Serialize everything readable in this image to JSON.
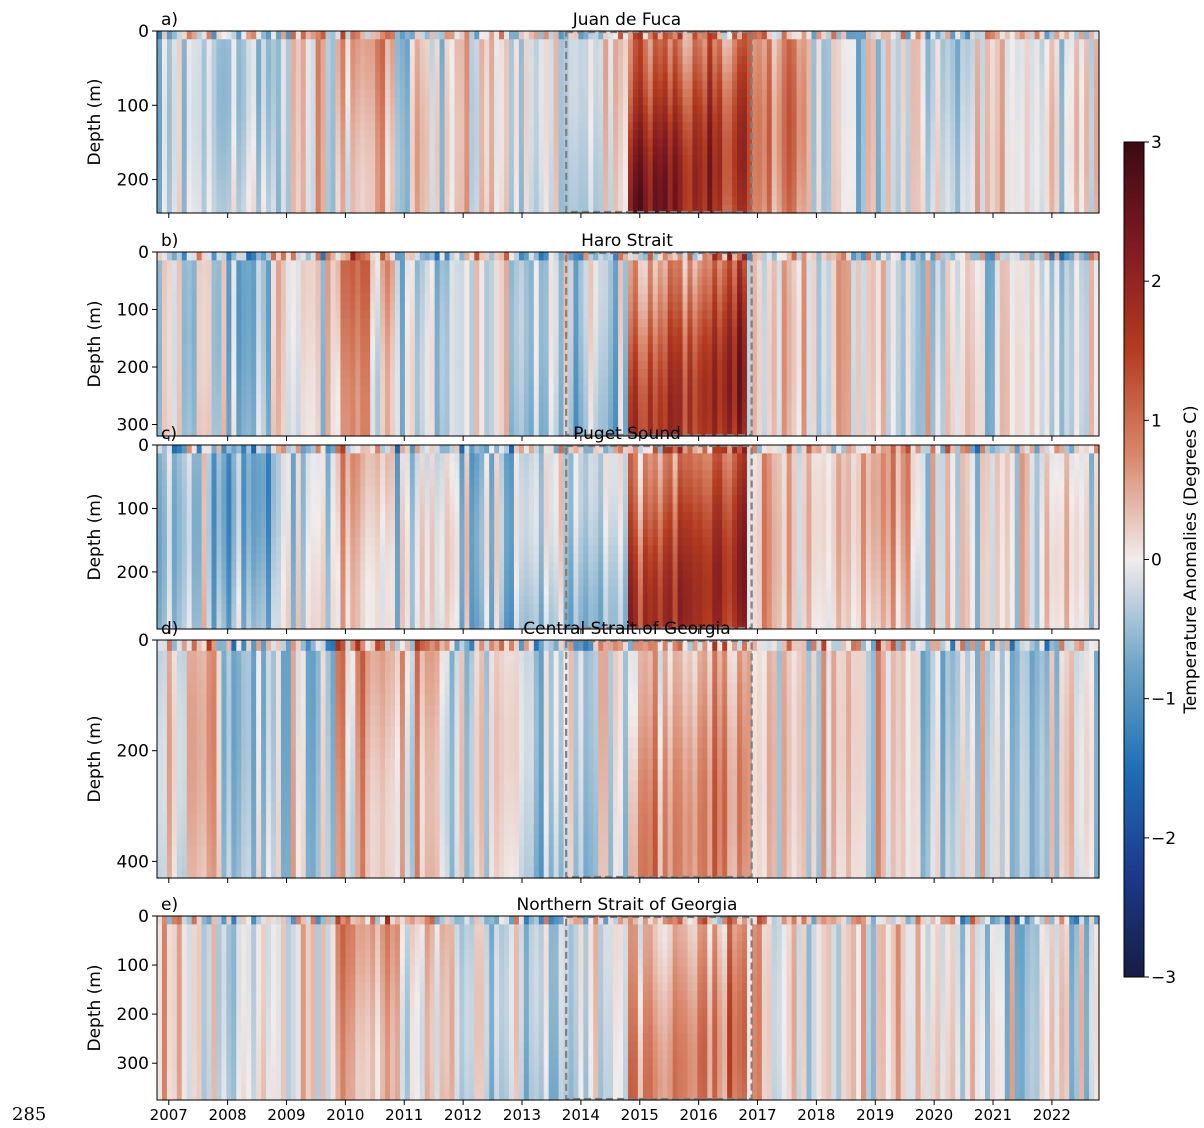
{
  "page_number": "285",
  "colorbar": {
    "label": "Temperature Anomalies (Degrees C)",
    "min": -3,
    "max": 3,
    "ticks": [
      "3",
      "2",
      "1",
      "0",
      "−1",
      "−2",
      "−3"
    ],
    "colormap": "diverging-balance",
    "colors": [
      "#151d44",
      "#1c3a8c",
      "#1f6fb5",
      "#6fa6c8",
      "#f1ecec",
      "#d9876b",
      "#b43c20",
      "#7f1a22",
      "#3c0912"
    ]
  },
  "x_ticks": [
    "2007",
    "2008",
    "2009",
    "2010",
    "2011",
    "2012",
    "2013",
    "2014",
    "2015",
    "2016",
    "2017",
    "2018",
    "2019",
    "2020",
    "2021",
    "2022"
  ],
  "highlight_window": {
    "start_year": 2013.75,
    "end_year": 2016.9,
    "color": "#808080",
    "style": "dashed"
  },
  "chart_data": [
    {
      "type": "heatmap",
      "panel_label": "a)",
      "title": "Juan de Fuca",
      "ylabel": "Depth (m)",
      "xlim": [
        2006.8,
        2022.8
      ],
      "ylim": [
        245,
        0
      ],
      "yticks": [
        "0",
        "100",
        "200"
      ],
      "ytick_values": [
        0,
        100,
        200
      ],
      "anomaly_by_year": [
        -0.2,
        -0.4,
        0.1,
        0.5,
        -0.3,
        0.2,
        -0.2,
        -0.3,
        2.0,
        1.7,
        0.6,
        -0.1,
        0.1,
        -0.3,
        -0.1,
        -0.3
      ]
    },
    {
      "type": "heatmap",
      "panel_label": "b)",
      "title": "Haro Strait",
      "ylabel": "Depth (m)",
      "xlim": [
        2006.8,
        2022.8
      ],
      "ylim": [
        320,
        0
      ],
      "yticks": [
        "0",
        "100",
        "200",
        "300"
      ],
      "ytick_values": [
        0,
        100,
        200,
        300
      ],
      "anomaly_by_year": [
        -0.2,
        -0.3,
        0.2,
        0.6,
        -0.3,
        0.0,
        -0.3,
        -0.4,
        1.6,
        1.7,
        0.2,
        0.1,
        0.1,
        -0.2,
        -0.1,
        -0.2
      ]
    },
    {
      "type": "heatmap",
      "panel_label": "c)",
      "title": "Puget Sound",
      "ylabel": "Depth (m)",
      "xlim": [
        2006.8,
        2022.8
      ],
      "ylim": [
        290,
        0
      ],
      "yticks": [
        "0",
        "100",
        "200"
      ],
      "ytick_values": [
        0,
        100,
        200
      ],
      "anomaly_by_year": [
        -0.4,
        -0.6,
        -0.3,
        0.5,
        -0.4,
        -0.6,
        -0.6,
        -0.6,
        1.6,
        1.5,
        0.2,
        0.3,
        0.5,
        -0.1,
        0.1,
        -0.4
      ]
    },
    {
      "type": "heatmap",
      "panel_label": "d)",
      "title": "Central Strait of Georgia",
      "ylabel": "Depth (m)",
      "xlim": [
        2006.8,
        2022.8
      ],
      "ylim": [
        430,
        0
      ],
      "yticks": [
        "0",
        "200",
        "400"
      ],
      "ytick_values": [
        0,
        200,
        400
      ],
      "anomaly_by_year": [
        0.4,
        -0.3,
        -0.2,
        0.5,
        0.5,
        -0.3,
        -0.4,
        -0.3,
        0.7,
        0.7,
        0.2,
        0.2,
        0.1,
        -0.3,
        -0.2,
        -0.3
      ]
    },
    {
      "type": "heatmap",
      "panel_label": "e)",
      "title": "Northern Strait of Georgia",
      "ylabel": "Depth (m)",
      "xlim": [
        2006.8,
        2022.8
      ],
      "ylim": [
        375,
        0
      ],
      "yticks": [
        "0",
        "100",
        "200",
        "300"
      ],
      "ytick_values": [
        0,
        100,
        200,
        300
      ],
      "anomaly_by_year": [
        0.1,
        -0.2,
        0.0,
        0.5,
        0.4,
        -0.3,
        -0.3,
        -0.2,
        0.7,
        0.8,
        0.2,
        0.0,
        0.1,
        -0.2,
        -0.2,
        -0.3
      ]
    }
  ]
}
